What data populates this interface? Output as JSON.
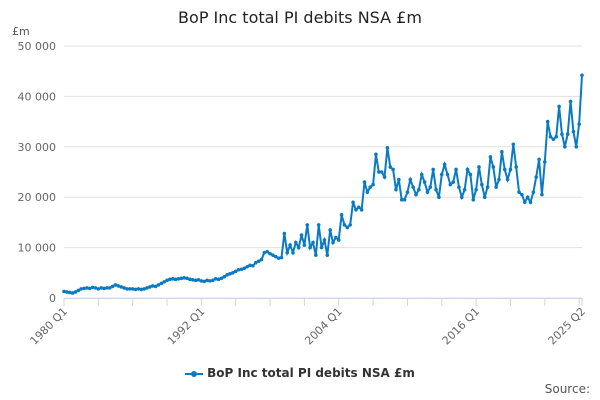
{
  "chart_data": {
    "type": "line",
    "title": "BoP Inc total PI debits NSA £m",
    "ylabel": "£m",
    "xlabel": "",
    "ylim": [
      0,
      50000
    ],
    "yticks": [
      0,
      10000,
      20000,
      30000,
      40000,
      50000
    ],
    "ytick_labels": [
      "0",
      "10 000",
      "20 000",
      "30 000",
      "40 000",
      "50 000"
    ],
    "x_start": "1980 Q1",
    "x_end": "2025 Q2",
    "xtick_labels": [
      {
        "index": 0,
        "label": "1980 Q1"
      },
      {
        "index": 48,
        "label": "1992 Q1"
      },
      {
        "index": 96,
        "label": "2004 Q1"
      },
      {
        "index": 144,
        "label": "2016 Q1"
      },
      {
        "index": 181,
        "label": "2025 Q2"
      }
    ],
    "legend": "BoP Inc total PI debits NSA £m",
    "legend_position": "bottom",
    "series_color": "#0a7bc2",
    "values_thousands": [
      1.3,
      1.2,
      1.1,
      1.0,
      1.2,
      1.5,
      1.8,
      1.9,
      2.0,
      1.9,
      2.1,
      2.0,
      1.8,
      2.0,
      1.9,
      2.0,
      2.0,
      2.3,
      2.6,
      2.4,
      2.2,
      2.0,
      1.8,
      1.8,
      1.8,
      1.7,
      1.8,
      1.7,
      1.8,
      2.0,
      2.2,
      2.4,
      2.3,
      2.6,
      2.9,
      3.2,
      3.5,
      3.7,
      3.8,
      3.7,
      3.8,
      3.9,
      4.0,
      3.9,
      3.7,
      3.6,
      3.5,
      3.6,
      3.4,
      3.3,
      3.5,
      3.4,
      3.5,
      3.8,
      3.7,
      3.9,
      4.2,
      4.6,
      4.8,
      5.0,
      5.3,
      5.6,
      5.7,
      5.9,
      6.2,
      6.5,
      6.4,
      7.0,
      7.3,
      7.6,
      9.0,
      9.2,
      8.8,
      8.5,
      8.2,
      7.9,
      8.0,
      12.8,
      9,
      10.5,
      9,
      11,
      10,
      12.5,
      10.5,
      14.5,
      10,
      11,
      8.5,
      14.5,
      10,
      11.5,
      8.5,
      13.5,
      11,
      12,
      11.5,
      16.5,
      14.5,
      14,
      14.5,
      19,
      17.5,
      18,
      17.5,
      23,
      21,
      22,
      22.5,
      28.5,
      25,
      25,
      24,
      29.8,
      26,
      25.5,
      21.5,
      23.5,
      19.5,
      19.5,
      21,
      23.5,
      22,
      20.5,
      21.5,
      24.5,
      23,
      21,
      22,
      25.5,
      21.5,
      20,
      24.5,
      26.5,
      24.5,
      22.5,
      23,
      25.5,
      22,
      20,
      21.5,
      25.5,
      24.5,
      19.5,
      21.5,
      26,
      22.5,
      20,
      22,
      28,
      26,
      22,
      23.5,
      29,
      25.5,
      23.5,
      25.5,
      30.5,
      26,
      21,
      20.5,
      19,
      20,
      19,
      21,
      24,
      27.5,
      20.5,
      27,
      35,
      32,
      31.5,
      32,
      38,
      32.5,
      30,
      32.5,
      39,
      33,
      30,
      34.5,
      44.2
    ]
  },
  "source_label": "Source:"
}
